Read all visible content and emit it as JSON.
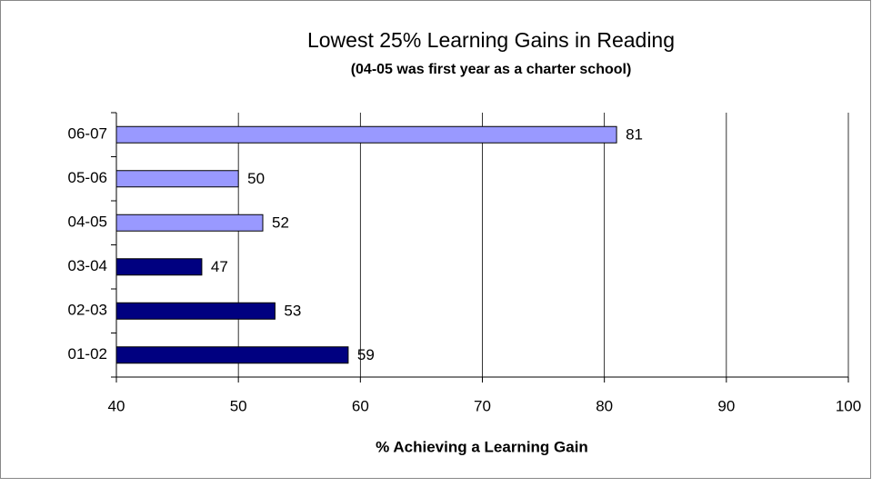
{
  "chart_data": {
    "type": "bar",
    "orientation": "horizontal",
    "title": "Lowest 25%  Learning Gains in Reading",
    "subtitle": "(04-05 was first year as a charter school)",
    "x_label": "% Achieving a Learning Gain",
    "categories": [
      "06-07",
      "05-06",
      "04-05",
      "03-04",
      "02-03",
      "01-02"
    ],
    "values": [
      81,
      50,
      52,
      47,
      53,
      59
    ],
    "colors": [
      "#9999ff",
      "#9999ff",
      "#9999ff",
      "#000080",
      "#000080",
      "#000080"
    ],
    "xlim": [
      40,
      100
    ],
    "xticks": [
      40,
      50,
      60,
      70,
      80,
      90,
      100
    ],
    "grid": true
  }
}
